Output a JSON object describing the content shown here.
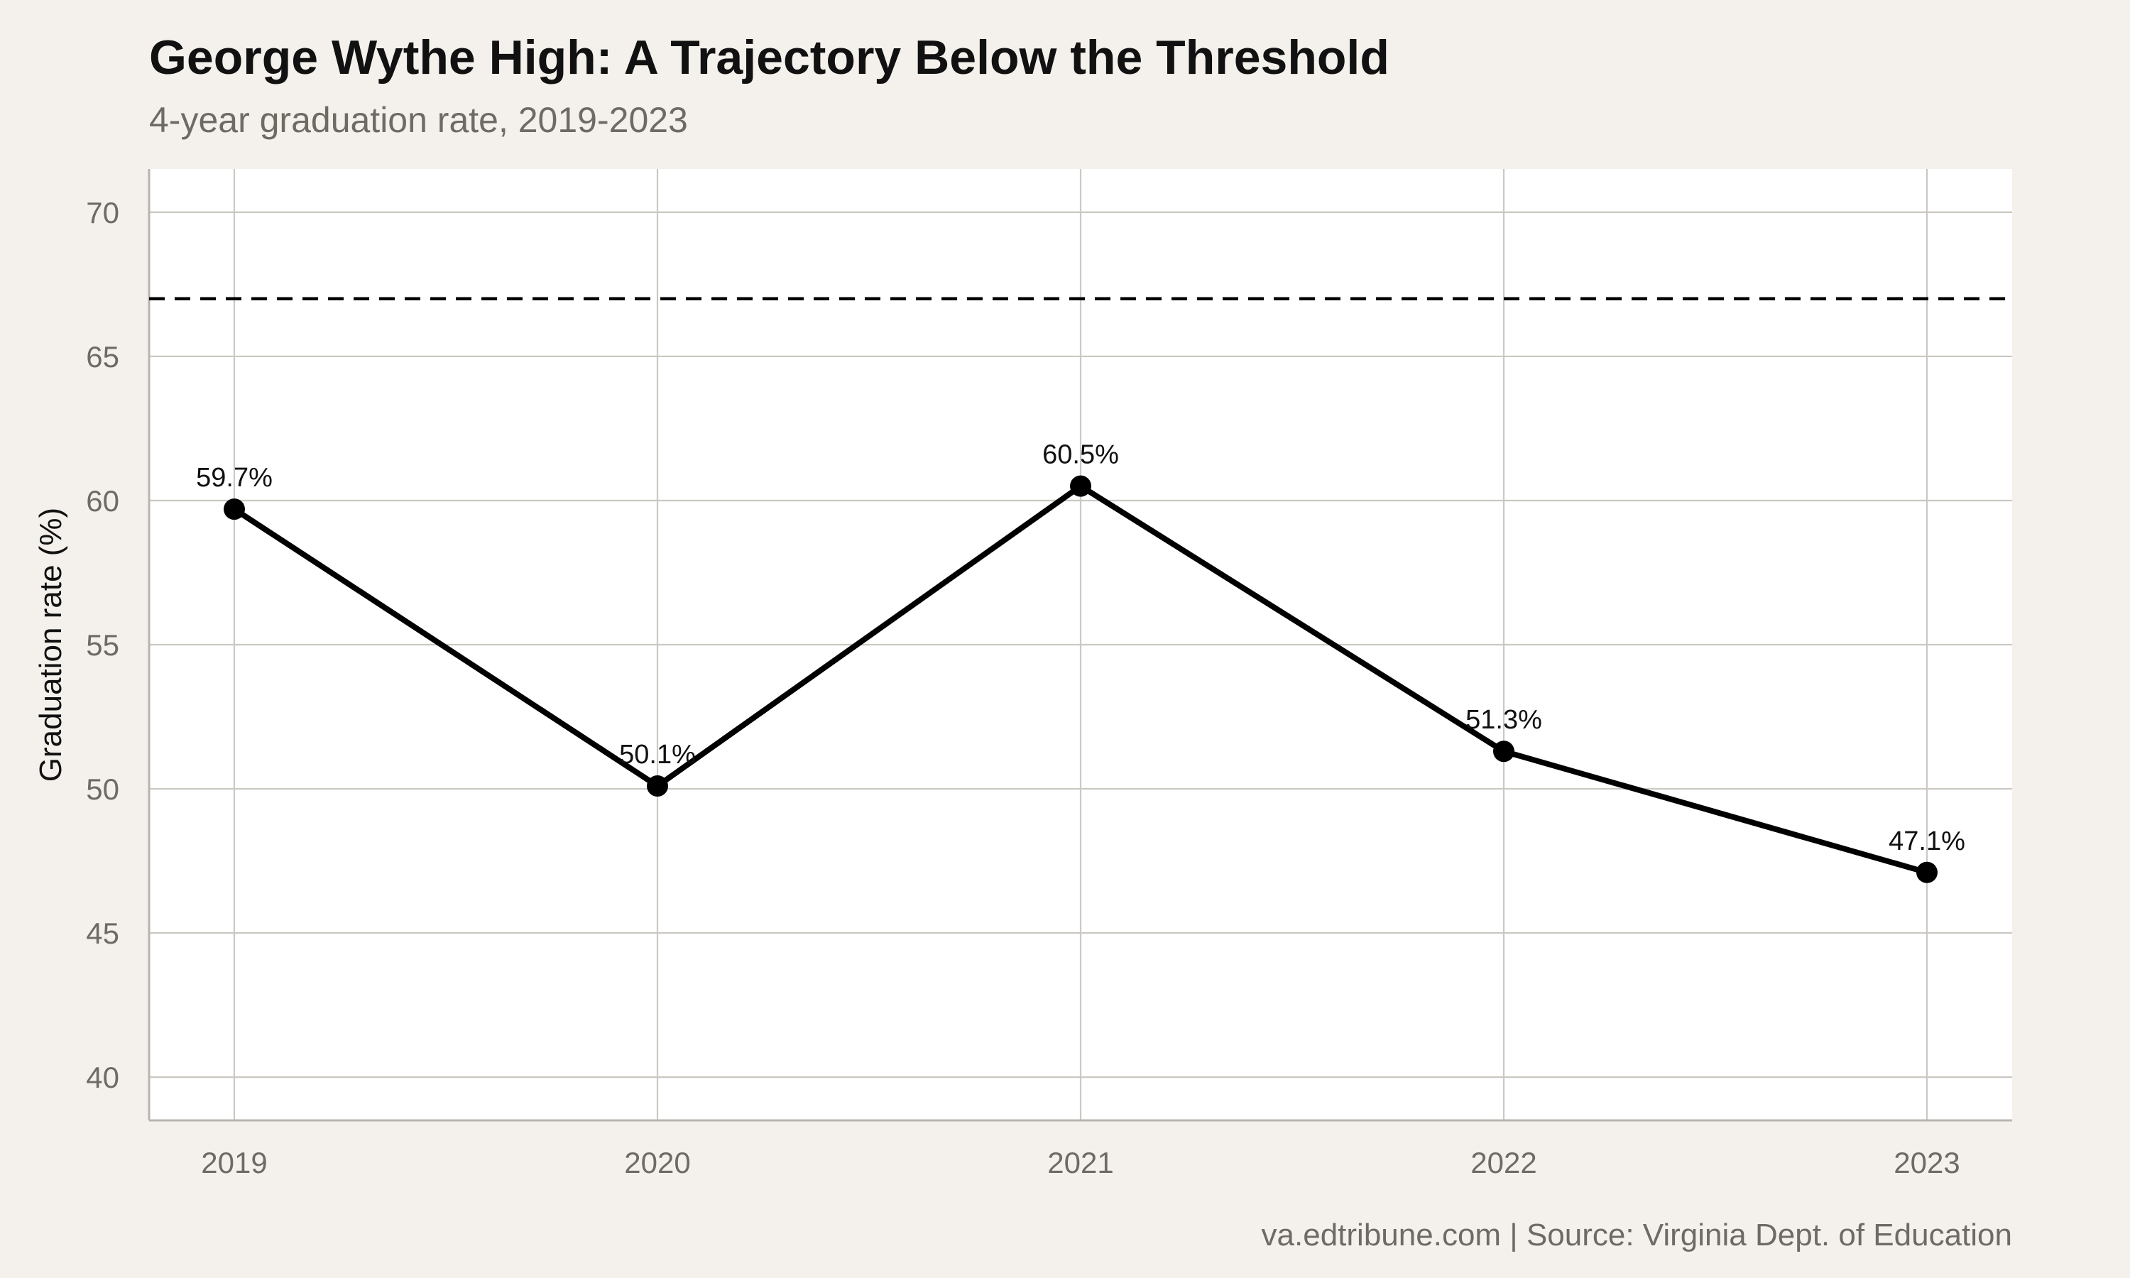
{
  "chart_data": {
    "type": "line",
    "title": "George Wythe High: A Trajectory Below the Threshold",
    "subtitle": "4-year graduation rate, 2019-2023",
    "xlabel": "",
    "ylabel": "Graduation rate (%)",
    "x": [
      "2019",
      "2020",
      "2021",
      "2022",
      "2023"
    ],
    "series": [
      {
        "values": [
          59.7,
          50.1,
          60.5,
          51.3,
          47.1
        ],
        "labels": [
          "59.7%",
          "50.1%",
          "60.5%",
          "51.3%",
          "47.1%"
        ],
        "color": "#000000"
      }
    ],
    "reference_line": {
      "y": 67,
      "style": "dashed",
      "color": "#000000"
    },
    "ylim": [
      38.5,
      71.5
    ],
    "yticks": [
      40,
      45,
      50,
      55,
      60,
      65,
      70
    ],
    "grid": true,
    "legend": "none",
    "caption": "va.edtribune.com | Source: Virginia Dept. of Education"
  },
  "colors": {
    "background": "#f4f1ec",
    "panel": "#ffffff",
    "grid": "#cbc8c2",
    "text_muted": "#6f6a64"
  }
}
